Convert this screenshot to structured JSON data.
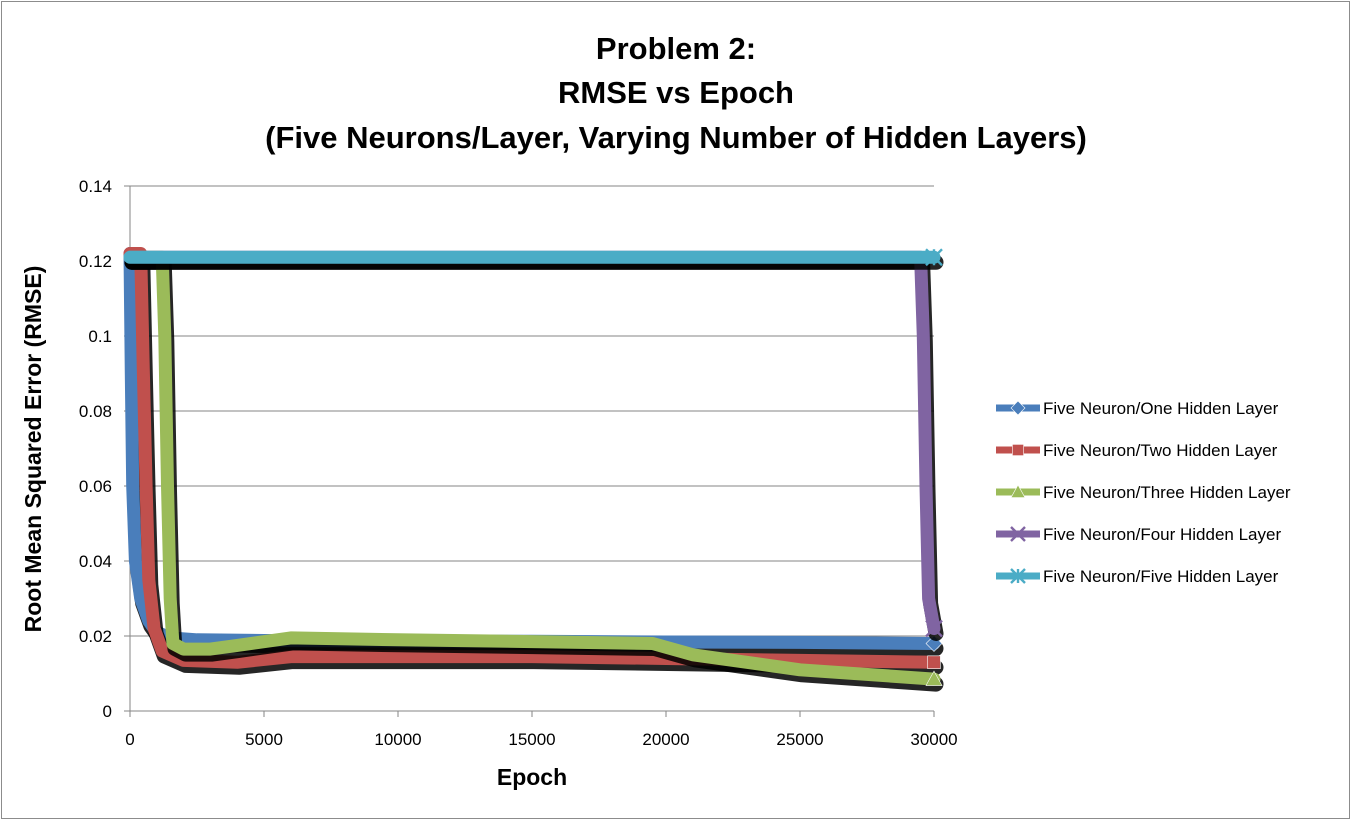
{
  "chart_data": {
    "type": "line",
    "title": [
      "Problem 2:",
      "RMSE vs Epoch",
      "(Five Neurons/Layer, Varying Number of Hidden Layers)"
    ],
    "xlabel": "Epoch",
    "ylabel": "Root Mean Squared Error (RMSE)",
    "xlim": [
      0,
      30000
    ],
    "ylim": [
      0,
      0.14
    ],
    "x_ticks": [
      "0",
      "5000",
      "10000",
      "15000",
      "20000",
      "25000",
      "30000"
    ],
    "y_ticks": [
      "0",
      "0.02",
      "0.04",
      "0.06",
      "0.08",
      "0.1",
      "0.12",
      "0.14"
    ],
    "grid": "horizontal",
    "legend_position": "right",
    "series": [
      {
        "name": "Five Neuron/One Hidden Layer",
        "color": "#4a7ebb",
        "marker": "diamond",
        "points": [
          [
            0,
            0.122
          ],
          [
            50,
            0.09
          ],
          [
            100,
            0.06
          ],
          [
            200,
            0.04
          ],
          [
            400,
            0.03
          ],
          [
            700,
            0.024
          ],
          [
            1000,
            0.021
          ],
          [
            1500,
            0.0195
          ],
          [
            2500,
            0.019
          ],
          [
            5000,
            0.0188
          ],
          [
            10000,
            0.0187
          ],
          [
            15000,
            0.0186
          ],
          [
            20000,
            0.0184
          ],
          [
            25000,
            0.0183
          ],
          [
            30000,
            0.018
          ]
        ]
      },
      {
        "name": "Five Neuron/Two Hidden Layer",
        "color": "#c0504d",
        "marker": "square",
        "points": [
          [
            0,
            0.122
          ],
          [
            400,
            0.122
          ],
          [
            500,
            0.09
          ],
          [
            600,
            0.06
          ],
          [
            700,
            0.035
          ],
          [
            900,
            0.022
          ],
          [
            1200,
            0.016
          ],
          [
            2000,
            0.0135
          ],
          [
            4000,
            0.013
          ],
          [
            6000,
            0.0145
          ],
          [
            10000,
            0.0145
          ],
          [
            15000,
            0.0145
          ],
          [
            20000,
            0.014
          ],
          [
            25000,
            0.0135
          ],
          [
            30000,
            0.013
          ]
        ]
      },
      {
        "name": "Five Neuron/Three Hidden Layer",
        "color": "#9bbb59",
        "marker": "triangle",
        "points": [
          [
            0,
            0.121
          ],
          [
            1200,
            0.121
          ],
          [
            1300,
            0.1
          ],
          [
            1400,
            0.06
          ],
          [
            1500,
            0.03
          ],
          [
            1600,
            0.018
          ],
          [
            2000,
            0.0165
          ],
          [
            3000,
            0.0165
          ],
          [
            4000,
            0.0175
          ],
          [
            6000,
            0.0195
          ],
          [
            10000,
            0.019
          ],
          [
            15000,
            0.0185
          ],
          [
            19500,
            0.018
          ],
          [
            21000,
            0.015
          ],
          [
            25000,
            0.011
          ],
          [
            30000,
            0.0085
          ]
        ]
      },
      {
        "name": "Five Neuron/Four Hidden Layer",
        "color": "#8064a2",
        "marker": "x",
        "points": [
          [
            0,
            0.121
          ],
          [
            29500,
            0.121
          ],
          [
            29600,
            0.1
          ],
          [
            29700,
            0.06
          ],
          [
            29800,
            0.03
          ],
          [
            30000,
            0.022
          ]
        ]
      },
      {
        "name": "Five Neuron/Five Hidden Layer",
        "color": "#4bacc6",
        "marker": "star",
        "points": [
          [
            0,
            0.121
          ],
          [
            30000,
            0.121
          ]
        ]
      }
    ]
  }
}
